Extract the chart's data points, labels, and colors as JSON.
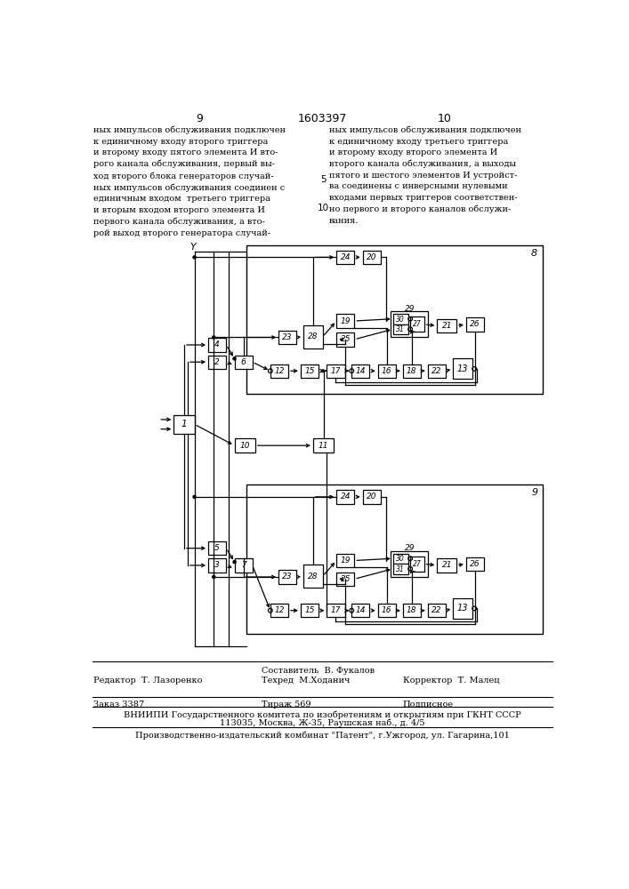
{
  "page_number_left": "9",
  "page_number_center": "1603397",
  "page_number_right": "10",
  "text_left": "ных импульсов обслуживания подключен\nк единичному входу второго триггера\nи второму входу пятого элемента И вто-\nрого канала обслуживания, первый вы-\nход второго блока генераторов случай-\nных импульсов обслуживания соединен с\nединичным входом  третьего триггера\nи вторым входом второго элемента И\nпервого канала обслуживания, а вто-\nрой выход второго генератора случай-",
  "text_right": "ных импульсов обслуживания подключен\nк единичному входу третьего триггера\nи второму входу второго элемента И\nвторого канала обслуживания, а выходы\nпятого и шестого элементов И устройст-\nва соединены с инверсными нулевыми\nвходами первых триггеров соответствен-\nно первого и второго каналов обслужи-\nвания.",
  "footer_editor": "Редактор  Т. Лазоренко",
  "footer_compiler": "Составитель  В. Фукалов",
  "footer_tech": "Техред  М.Ходанич",
  "footer_corrector": "Корректор  Т. Малец",
  "footer_order": "Заказ 3387",
  "footer_tirazh": "Тираж 569",
  "footer_podpisnoe": "Подписное",
  "footer_vniipи": "ВНИИПИ Государственного комитета по изобретениям и открытиям при ГКНТ СССР",
  "footer_address": "113035, Москва, Ж-35, Раушская наб., д. 4/5",
  "footer_publisher": "Производственно-издательский комбинат \"Патент\", г.Ужгород, ул. Гагарина,101",
  "bg_color": "#ffffff"
}
